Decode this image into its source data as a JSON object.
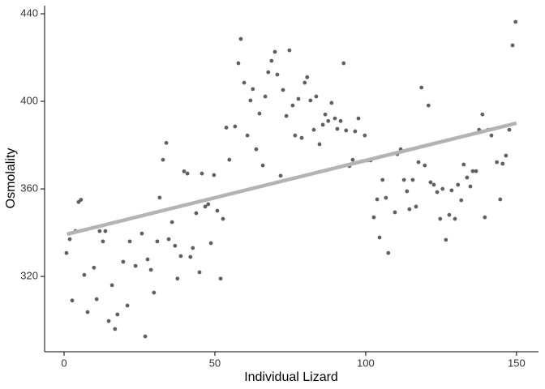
{
  "chart_data": {
    "type": "scatter",
    "x_label": "Individual Lizard",
    "y_label": "Osmolality",
    "x": [
      0.8,
      1.9,
      2.7,
      3.8,
      4.8,
      5.6,
      6.7,
      7.8,
      9.9,
      10.8,
      11.8,
      12.9,
      13.7,
      14.8,
      15.9,
      16.9,
      17.7,
      19.6,
      21,
      21.8,
      23.7,
      25.8,
      26.9,
      27.7,
      28.8,
      29.8,
      30.9,
      31.7,
      32.8,
      33.9,
      34.7,
      35.8,
      36.8,
      37.6,
      38.7,
      39.8,
      40.9,
      41.9,
      42.7,
      43.8,
      44.9,
      45.7,
      46.8,
      47.8,
      48.7,
      49.7,
      50.8,
      51.9,
      52.7,
      53.8,
      54.8,
      56.7,
      57.8,
      58.6,
      59.7,
      60.8,
      61.8,
      62.6,
      63.7,
      64.8,
      65.9,
      66.7,
      67.7,
      68.8,
      69.9,
      70.7,
      71.8,
      72.6,
      73.7,
      74.7,
      75.8,
      76.6,
      77.7,
      78.8,
      79.8,
      80.6,
      81.7,
      82.8,
      83.6,
      84.7,
      85.8,
      86.6,
      87.6,
      88.7,
      89.8,
      90.6,
      91.7,
      92.7,
      93.5,
      94.6,
      95.7,
      96.5,
      97.6,
      98.7,
      99.7,
      100.5,
      101.6,
      102.7,
      103.8,
      104.6,
      105.6,
      106.7,
      107.5,
      108.6,
      109.7,
      110.5,
      111.6,
      112.7,
      113.7,
      114.5,
      115.6,
      116.7,
      117.5,
      118.5,
      119.6,
      120.8,
      121.5,
      122.6,
      123.7,
      124.7,
      125.5,
      126.6,
      127.7,
      128.5,
      129.6,
      130.6,
      131.7,
      132.5,
      133.6,
      134.7,
      135.5,
      136.6,
      137.6,
      138.7,
      139.5,
      140.6,
      141.7,
      143.5,
      144.6,
      145.4,
      146.5,
      147.6,
      148.7,
      149.7
    ],
    "values": [
      330.7,
      337,
      309,
      340.7,
      354,
      355,
      320.7,
      303.7,
      324,
      309.6,
      340.7,
      336,
      340.7,
      299.6,
      316,
      296,
      302.6,
      326.7,
      306.7,
      336,
      324.8,
      339.6,
      292.6,
      327.8,
      323,
      312.6,
      336,
      356,
      373.3,
      381,
      337,
      344.8,
      334,
      319,
      329.3,
      368,
      367,
      328.9,
      333,
      348.9,
      321.9,
      367,
      351.9,
      353,
      335.2,
      366.3,
      350,
      319,
      346.3,
      388,
      373.3,
      388.5,
      417.4,
      428.5,
      408.5,
      384.4,
      400.4,
      405.6,
      378.1,
      394.4,
      370.7,
      402.2,
      413.3,
      418.5,
      422.6,
      412.2,
      366,
      405.2,
      393.3,
      423.3,
      398.1,
      384.4,
      401.1,
      383.3,
      408.5,
      411,
      400.4,
      387,
      402.2,
      380.4,
      389.3,
      394,
      391,
      399.3,
      392.2,
      387.4,
      391,
      417.4,
      386.7,
      370.4,
      373.3,
      386.3,
      392.2,
      372.6,
      384.4,
      373,
      373,
      347,
      355.2,
      337.8,
      364.1,
      355.9,
      330.7,
      375.9,
      349.3,
      375.9,
      378.1,
      364.1,
      358.9,
      350.7,
      364.1,
      351.9,
      372.2,
      406.3,
      370.7,
      398.1,
      363,
      361.9,
      358.5,
      346.3,
      360,
      336.7,
      348.1,
      359.3,
      346.3,
      361.9,
      354.8,
      371.1,
      365.2,
      361.1,
      368.1,
      368.1,
      387,
      394,
      347,
      387,
      384.4,
      372.2,
      355.2,
      371.5,
      375.2,
      387,
      425.6,
      436.3
    ],
    "color": "#444444",
    "fit": {
      "x": [
        1,
        150
      ],
      "values": [
        339.3,
        390
      ],
      "color": "#b3b3b3"
    },
    "xlim": [
      -6.45,
      157.3
    ],
    "ylim": [
      285.6,
      443.7
    ],
    "xticks": [
      0,
      50,
      100,
      150
    ],
    "yticks": [
      320,
      360,
      400,
      440
    ]
  }
}
